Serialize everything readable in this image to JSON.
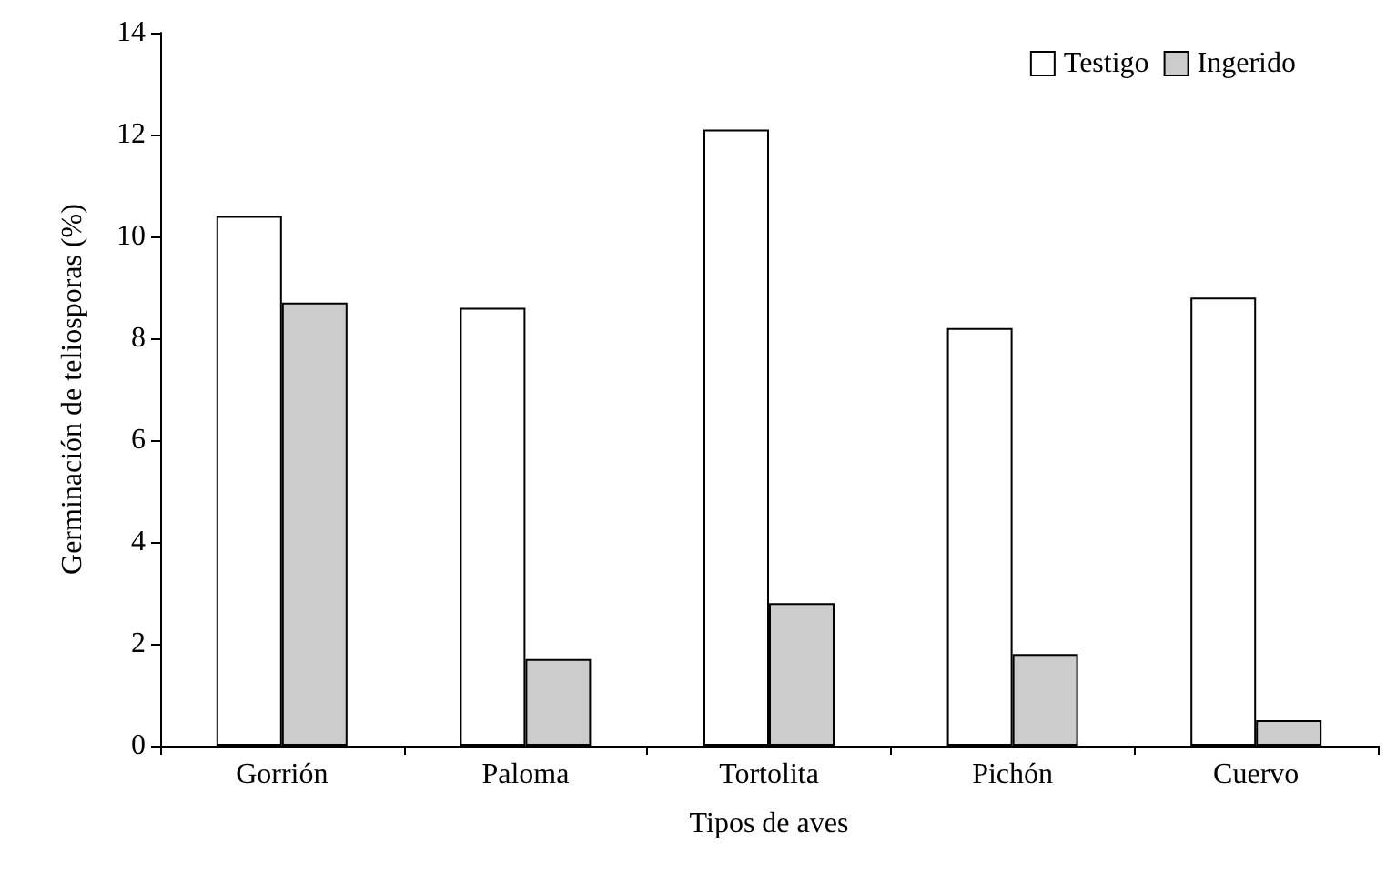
{
  "chart_data": {
    "type": "bar",
    "xlabel": "Tipos de aves",
    "ylabel": "Germinación de teliosporas (%)",
    "categories": [
      "Gorrión",
      "Paloma",
      "Tortolita",
      "Pichón",
      "Cuervo"
    ],
    "series": [
      {
        "name": "Testigo",
        "color": "#ffffff",
        "values": [
          10.4,
          8.6,
          12.1,
          8.2,
          8.8
        ]
      },
      {
        "name": "Ingerido",
        "color": "#cccccc",
        "values": [
          8.7,
          1.7,
          2.8,
          1.8,
          0.5
        ]
      }
    ],
    "ylim": [
      0,
      14
    ],
    "yticks": [
      0,
      2,
      4,
      6,
      8,
      10,
      12,
      14
    ],
    "grid": false,
    "legend": "top right"
  }
}
